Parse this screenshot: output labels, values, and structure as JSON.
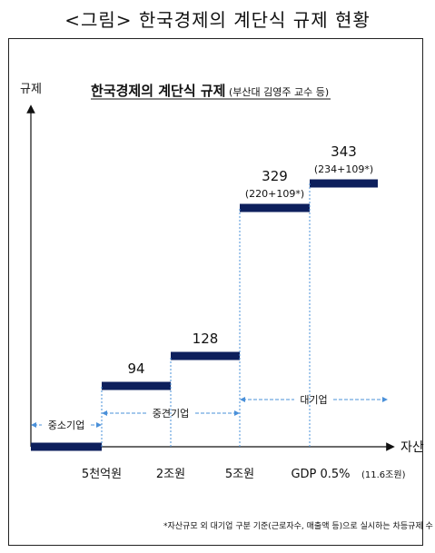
{
  "figure_title": "<그림> 한국경제의 계단식 규제 현황",
  "chart_data": {
    "type": "step",
    "title": "한국경제의 계단식 규제",
    "subtitle": "(부산대 김영주 교수 등)",
    "ylabel": "규제",
    "xlabel": "자산",
    "categories": [
      "5천억원",
      "2조원",
      "5조원",
      "GDP 0.5%"
    ],
    "last_category_note": "(11.6조원)",
    "steps": [
      {
        "value": null,
        "label": "",
        "sublabel": ""
      },
      {
        "value": 94,
        "label": "94",
        "sublabel": ""
      },
      {
        "value": 128,
        "label": "128",
        "sublabel": ""
      },
      {
        "value": 329,
        "label": "329",
        "sublabel": "(220+109*)"
      },
      {
        "value": 343,
        "label": "343",
        "sublabel": "(234+109*)"
      }
    ],
    "groups": [
      {
        "label": "중소기업",
        "from": 0,
        "to": 1
      },
      {
        "label": "중견기업",
        "from": 1,
        "to": 3
      },
      {
        "label": "대기업",
        "from": 3,
        "to": 5
      }
    ],
    "footnote": "*자산규모 외 대기업 구분 기준(근로자수, 매출액 등)으로 실시하는 차등규제 수",
    "bar_color": "#0d1f5c",
    "arrow_color": "#4a90d9"
  }
}
